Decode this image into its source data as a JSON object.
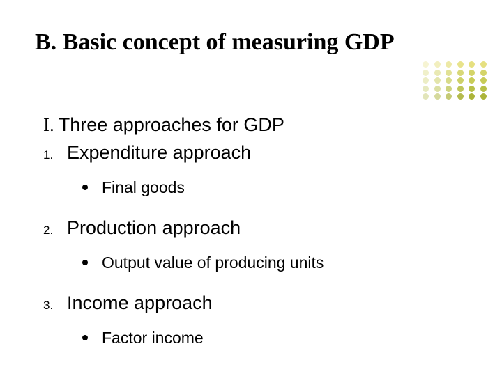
{
  "title": "B. Basic concept of measuring GDP",
  "section": {
    "roman": "I.",
    "text": "Three approaches for GDP"
  },
  "items": [
    {
      "num": "1.",
      "label": "Expenditure approach",
      "sub": "Final goods"
    },
    {
      "num": "2.",
      "label": "Production approach",
      "sub": "Output value of producing units"
    },
    {
      "num": "3.",
      "label": "Income approach",
      "sub": "Factor income"
    }
  ],
  "dotGrid": {
    "rowColors": [
      "#e6e080",
      "#d4d468",
      "#c8cc58",
      "#b8c048",
      "#acb43a"
    ],
    "alphas": [
      0.35,
      0.5,
      0.7,
      0.9,
      1.0,
      1.0
    ],
    "cols": 6,
    "rows": 5
  }
}
